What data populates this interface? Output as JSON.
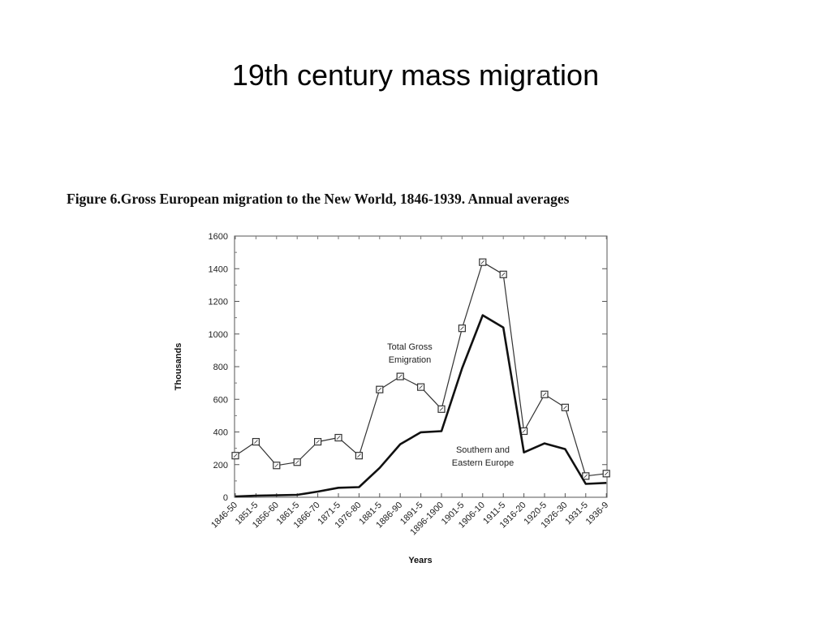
{
  "slide": {
    "title": "19th century mass migration"
  },
  "figure": {
    "caption": "Figure 6.Gross European migration to the New World, 1846-1939. Annual averages"
  },
  "chart_data": {
    "type": "line",
    "xlabel": "Years",
    "ylabel": "Thousands",
    "ylim": [
      0,
      1600
    ],
    "yticks": [
      0,
      200,
      400,
      600,
      800,
      1000,
      1200,
      1400,
      1600
    ],
    "grid": false,
    "categories": [
      "1846-50",
      "1851-5",
      "1856-60",
      "1861-5",
      "1866-70",
      "1871-5",
      "1976-80",
      "1881-5",
      "1886-90",
      "1891-5",
      "1896-1900",
      "1901-5",
      "1906-10",
      "1911-5",
      "1916-20",
      "1920-5",
      "1926-30",
      "1931-5",
      "1936-9"
    ],
    "series": [
      {
        "name": "Total Gross Emigration",
        "label_lines": [
          "Total Gross",
          "Emigration"
        ],
        "marker": "square",
        "color": "#333333",
        "values": [
          255,
          340,
          195,
          215,
          340,
          365,
          255,
          660,
          740,
          675,
          540,
          1035,
          1440,
          1365,
          405,
          630,
          550,
          130,
          145
        ]
      },
      {
        "name": "Southern and Eastern Europe",
        "label_lines": [
          "Southern and",
          "Eastern Europe"
        ],
        "marker": "none",
        "color": "#111111",
        "values": [
          5,
          10,
          12,
          15,
          35,
          58,
          62,
          180,
          325,
          398,
          405,
          790,
          1115,
          1040,
          275,
          330,
          295,
          82,
          88
        ]
      }
    ]
  }
}
